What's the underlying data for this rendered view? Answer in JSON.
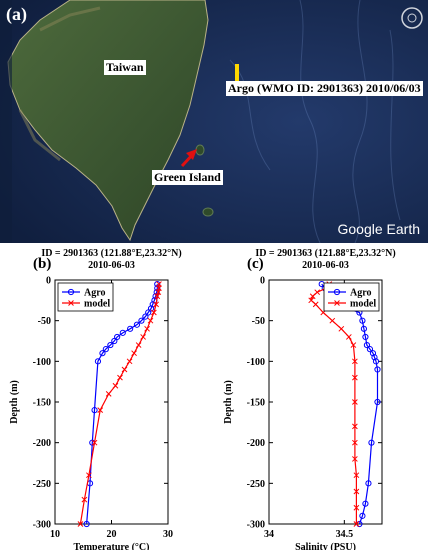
{
  "map": {
    "panel_label": "(a)",
    "taiwan_label": "Taiwan",
    "argo_label": "Argo (WMO ID: 2901363) 2010/06/03",
    "green_island_label": "Green Island",
    "watermark": "Google Earth",
    "colors": {
      "ocean": "#1a2e55",
      "land": "#3d5a32",
      "marker": "#ffd800",
      "arrow": "#e01010"
    }
  },
  "chart_data": [
    {
      "panel_label": "(b)",
      "type": "line",
      "title": "ID = 2901363 (121.88°E,23.32°N)",
      "subtitle": "2010-06-03",
      "xlabel": "Temperature (°C)",
      "ylabel": "Depth (m)",
      "xlim": [
        10,
        30
      ],
      "ylim": [
        -300,
        0
      ],
      "xticks": [
        "10",
        "20",
        "30"
      ],
      "yticks": [
        "0",
        "-50",
        "-100",
        "-150",
        "-200",
        "-250",
        "-300"
      ],
      "legend_position": "top-left",
      "series": [
        {
          "name": "Agro",
          "color": "#0000ff",
          "marker": "circle",
          "x": [
            28.1,
            28.1,
            28.0,
            27.8,
            27.6,
            27.3,
            27.0,
            26.5,
            26.0,
            25.3,
            24.5,
            23.3,
            22.0,
            21.0,
            20.5,
            19.8,
            19.0,
            18.4,
            17.6,
            17.0,
            16.6,
            16.2,
            15.6
          ],
          "y": [
            -5,
            -10,
            -15,
            -20,
            -25,
            -30,
            -35,
            -40,
            -45,
            -50,
            -55,
            -60,
            -65,
            -70,
            -75,
            -80,
            -85,
            -90,
            -100,
            -160,
            -200,
            -250,
            -300
          ]
        },
        {
          "name": "model",
          "color": "#ff0000",
          "marker": "x",
          "x": [
            28.4,
            28.4,
            28.3,
            28.1,
            27.9,
            27.5,
            26.9,
            26.3,
            25.6,
            24.8,
            24.0,
            23.2,
            22.3,
            21.5,
            20.7,
            19.5,
            18.0,
            17.0,
            16.0,
            15.2,
            14.5
          ],
          "y": [
            -5,
            -10,
            -15,
            -20,
            -30,
            -40,
            -50,
            -60,
            -70,
            -80,
            -90,
            -100,
            -110,
            -120,
            -130,
            -140,
            -160,
            -200,
            -240,
            -270,
            -300
          ]
        }
      ]
    },
    {
      "panel_label": "(c)",
      "type": "line",
      "title": "ID = 2901363 (121.88°E,23.32°N)",
      "subtitle": "2010-06-03",
      "xlabel": "Salinity (PSU)",
      "ylabel": "Depth (m)",
      "xlim": [
        34,
        34.75
      ],
      "ylim": [
        -300,
        0
      ],
      "xticks": [
        "34",
        "34.5"
      ],
      "yticks": [
        "0",
        "-50",
        "-100",
        "-150",
        "-200",
        "-250",
        "-300"
      ],
      "legend_position": "top-right",
      "series": [
        {
          "name": "Agro",
          "color": "#0000ff",
          "marker": "circle",
          "x": [
            34.35,
            34.37,
            34.39,
            34.41,
            34.45,
            34.6,
            34.62,
            34.63,
            34.64,
            34.65,
            34.67,
            34.69,
            34.7,
            34.71,
            34.72,
            34.72,
            34.68,
            34.66,
            34.64,
            34.62,
            34.6
          ],
          "y": [
            -5,
            -10,
            -15,
            -20,
            -30,
            -40,
            -50,
            -60,
            -70,
            -80,
            -85,
            -90,
            -95,
            -100,
            -110,
            -150,
            -200,
            -250,
            -275,
            -290,
            -300
          ]
        },
        {
          "name": "model",
          "color": "#ff0000",
          "marker": "x",
          "x": [
            34.4,
            34.38,
            34.32,
            34.29,
            34.28,
            34.31,
            34.36,
            34.42,
            34.48,
            34.53,
            34.56,
            34.57,
            34.57,
            34.57,
            34.57,
            34.57,
            34.57,
            34.58,
            34.58,
            34.58,
            34.58
          ],
          "y": [
            -5,
            -10,
            -15,
            -20,
            -25,
            -30,
            -40,
            -50,
            -60,
            -70,
            -80,
            -100,
            -120,
            -150,
            -180,
            -200,
            -220,
            -240,
            -260,
            -280,
            -300
          ]
        }
      ]
    }
  ]
}
